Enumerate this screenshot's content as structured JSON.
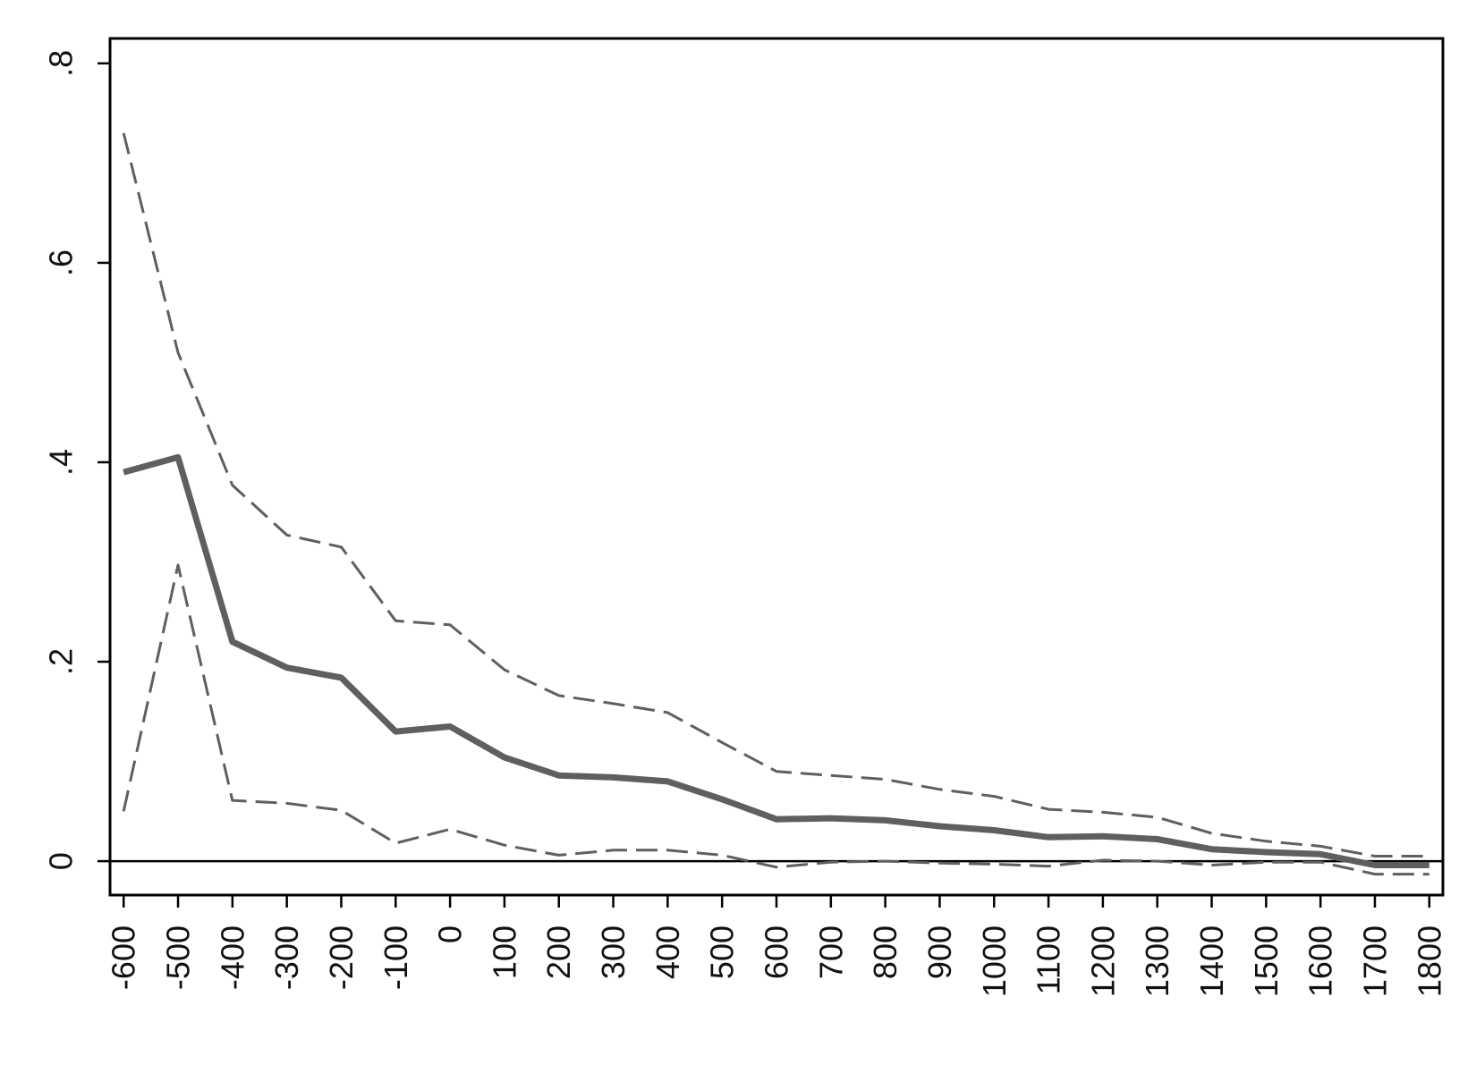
{
  "chart_data": {
    "type": "line",
    "title": "",
    "xlabel": "",
    "ylabel": "",
    "x": [
      -600,
      -500,
      -400,
      -300,
      -200,
      -100,
      0,
      100,
      200,
      300,
      400,
      500,
      600,
      700,
      800,
      900,
      1000,
      1100,
      1200,
      1300,
      1400,
      1500,
      1600,
      1700,
      1800
    ],
    "x_tick_labels": [
      "-600",
      "-500",
      "-400",
      "-300",
      "-200",
      "-100",
      "0",
      "100",
      "200",
      "300",
      "400",
      "500",
      "600",
      "700",
      "800",
      "900",
      "1000",
      "1100",
      "1200",
      "1300",
      "1400",
      "1500",
      "1600",
      "1700",
      "1800"
    ],
    "y_ticks": [
      0,
      0.2,
      0.4,
      0.6,
      0.8
    ],
    "y_tick_labels": [
      "0",
      ".2",
      ".4",
      ".6",
      ".8"
    ],
    "xlim": [
      -625,
      1825
    ],
    "ylim": [
      -0.034,
      0.825
    ],
    "reference_line": 0,
    "grid": false,
    "legend": "none",
    "series": [
      {
        "style": "solid",
        "color": "#5f5f5f",
        "values": [
          0.39,
          0.405,
          0.22,
          0.194,
          0.184,
          0.13,
          0.135,
          0.104,
          0.086,
          0.084,
          0.08,
          0.062,
          0.042,
          0.043,
          0.041,
          0.035,
          0.031,
          0.024,
          0.025,
          0.022,
          0.012,
          0.009,
          0.007,
          -0.004,
          -0.004
        ]
      },
      {
        "style": "dashed",
        "color": "#5f5f5f",
        "values": [
          0.73,
          0.51,
          0.377,
          0.327,
          0.315,
          0.241,
          0.237,
          0.192,
          0.166,
          0.158,
          0.149,
          0.119,
          0.09,
          0.086,
          0.082,
          0.072,
          0.065,
          0.052,
          0.049,
          0.044,
          0.028,
          0.02,
          0.015,
          0.005,
          0.005
        ]
      },
      {
        "style": "dashed",
        "color": "#5f5f5f",
        "values": [
          0.05,
          0.297,
          0.061,
          0.058,
          0.051,
          0.018,
          0.032,
          0.016,
          0.006,
          0.011,
          0.011,
          0.006,
          -0.006,
          -0.001,
          0.0,
          -0.002,
          -0.003,
          -0.005,
          0.001,
          0.0,
          -0.004,
          -0.001,
          -0.001,
          -0.013,
          -0.013
        ]
      }
    ]
  }
}
